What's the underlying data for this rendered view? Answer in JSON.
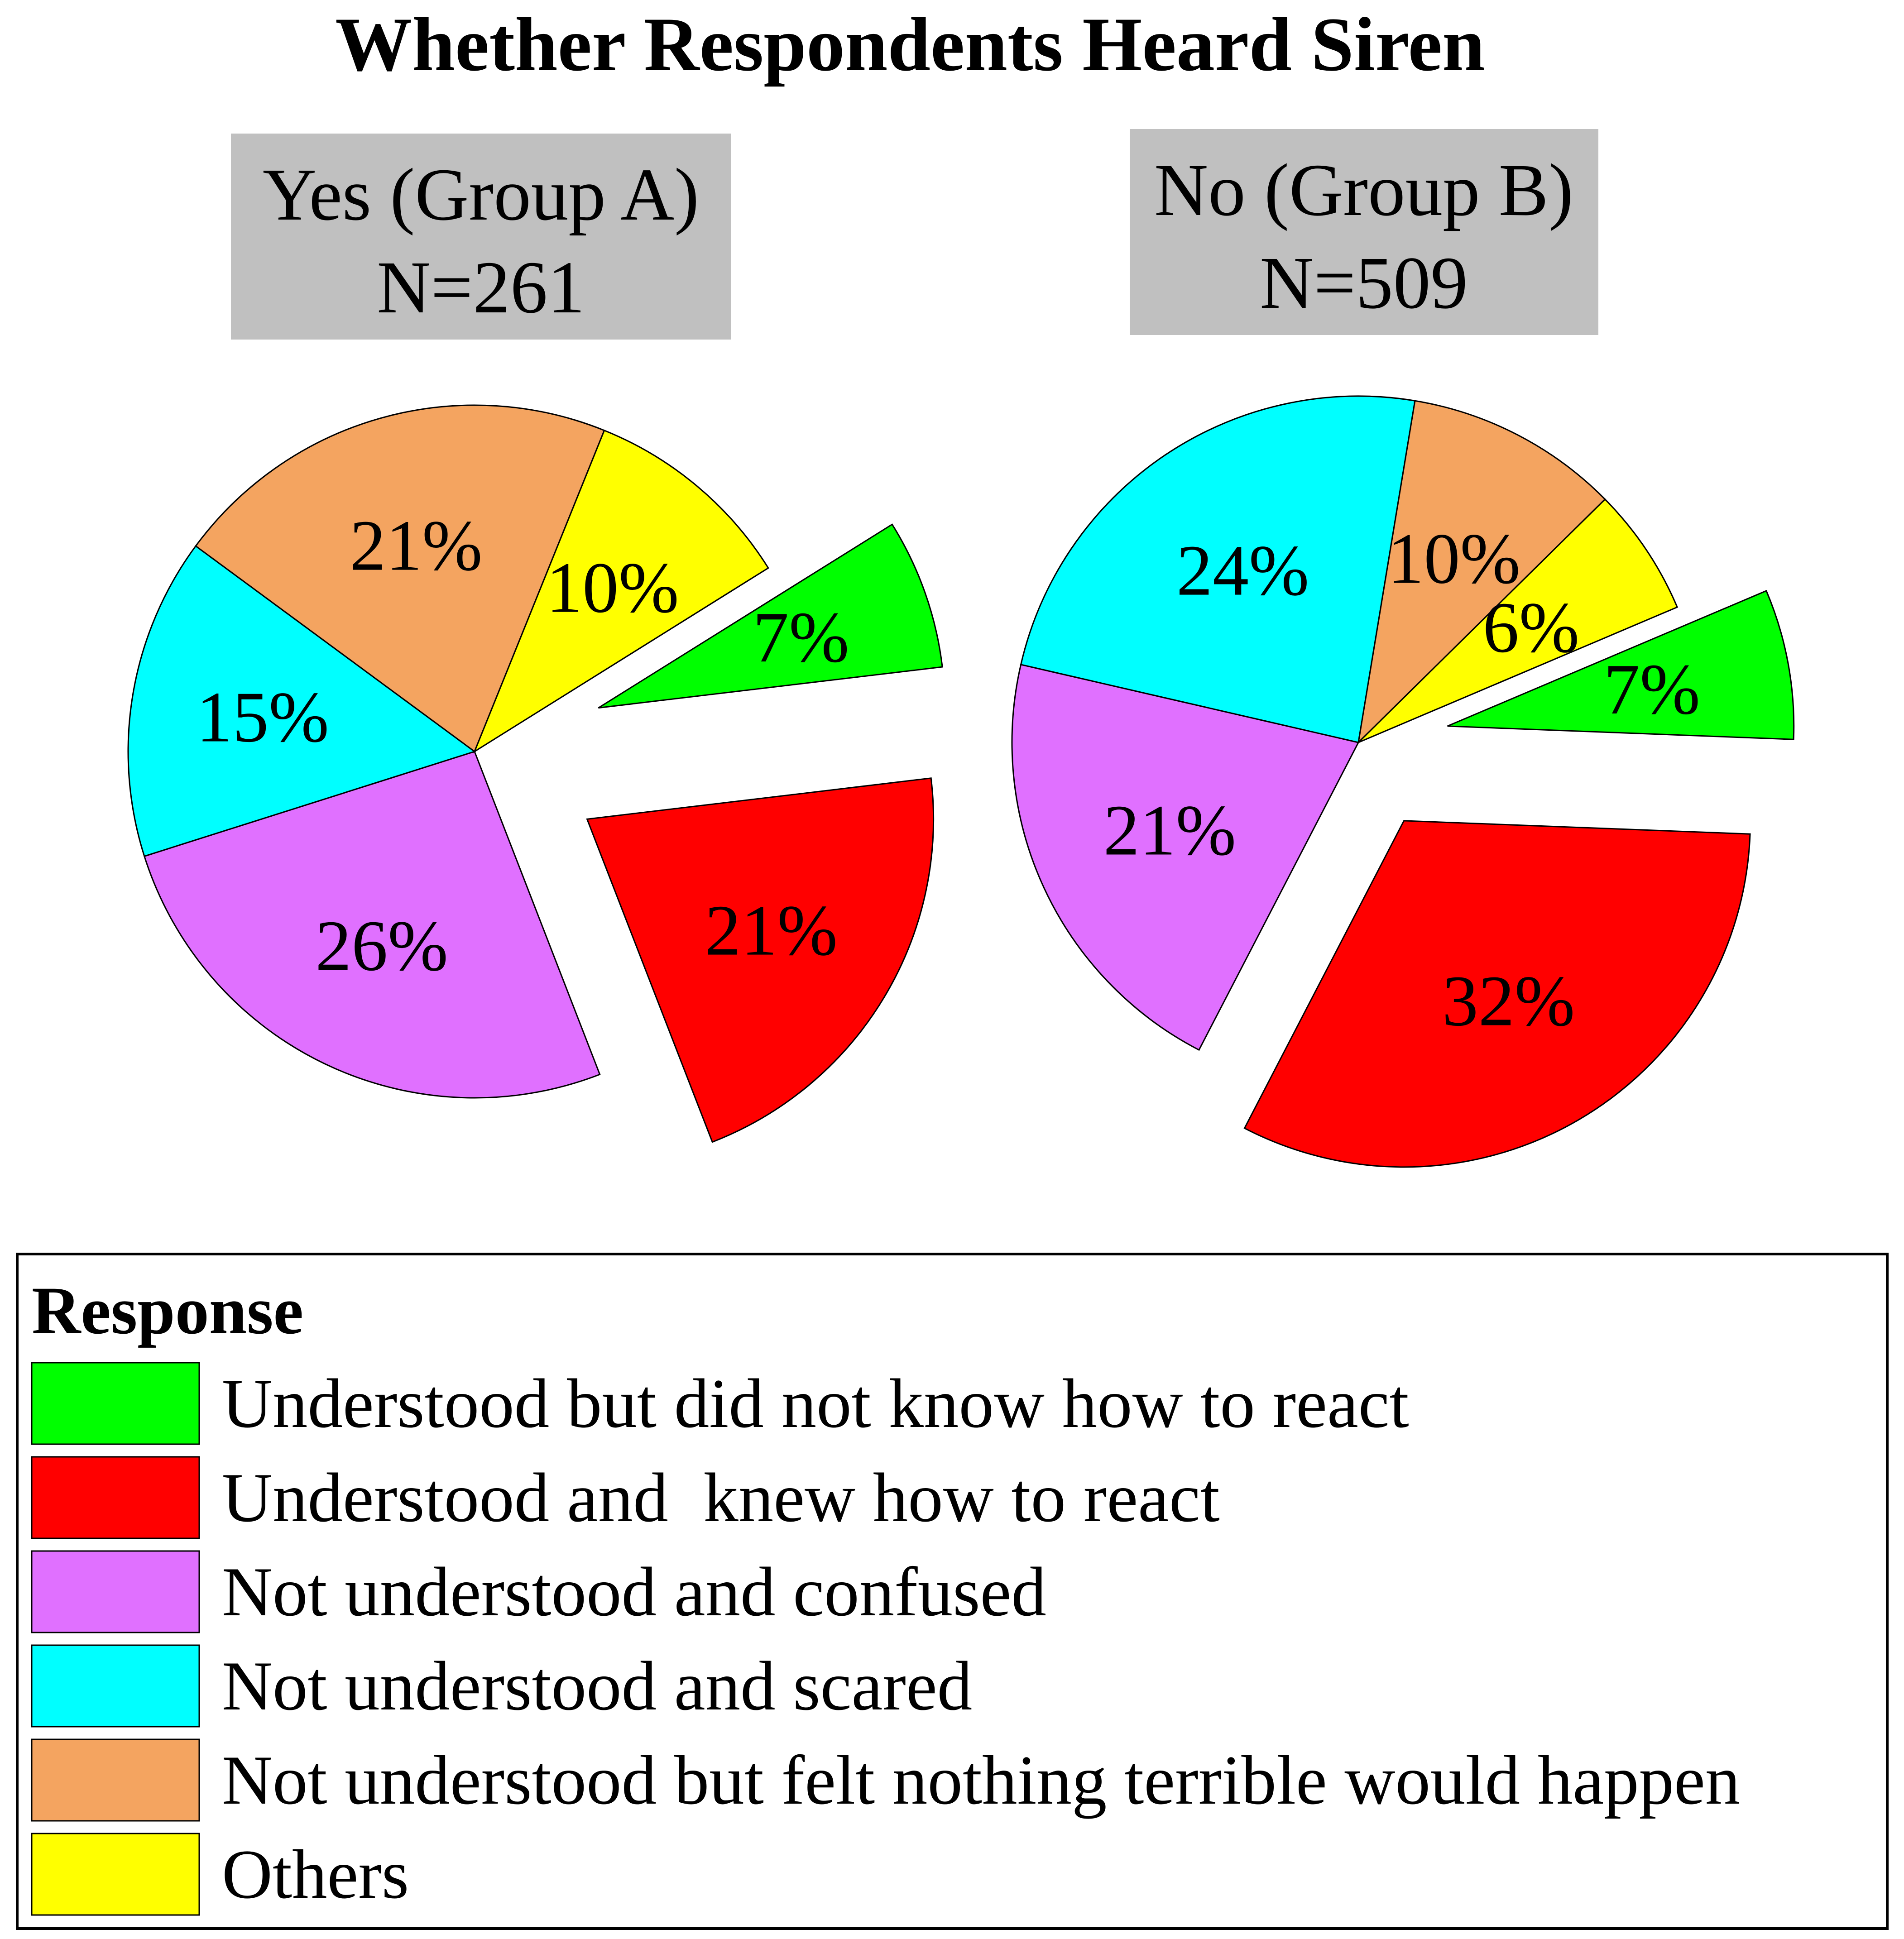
{
  "chart_data": {
    "type": "pie",
    "title": "Whether Respondents Heard Siren",
    "legend": {
      "title": "Response",
      "placement": "bottom",
      "entries": [
        "Understood but did not know how to react",
        "Understood and  knew how to react",
        "Not understood and confused",
        "Not understood and scared",
        "Not understood but felt nothing terrible would happen",
        "Others"
      ]
    },
    "colors": [
      "#00ff00",
      "#ff0000",
      "#e070ff",
      "#00ffff",
      "#f4a460",
      "#ffff00"
    ],
    "charts": [
      {
        "label_line1": "Yes (Group A)",
        "label_line2": "N=261",
        "values": [
          7,
          21,
          26,
          15,
          21,
          10
        ],
        "labels": [
          "7%",
          "21%",
          "26%",
          "15%",
          "21%",
          "10%"
        ],
        "exploded": [
          true,
          true,
          false,
          false,
          false,
          false
        ]
      },
      {
        "label_line1": "No (Group B)",
        "label_line2": "N=509",
        "values": [
          7,
          32,
          21,
          24,
          10,
          6
        ],
        "labels": [
          "7%",
          "32%",
          "21%",
          "24%",
          "10%",
          "6%"
        ],
        "exploded": [
          true,
          true,
          false,
          false,
          false,
          false
        ]
      }
    ]
  }
}
